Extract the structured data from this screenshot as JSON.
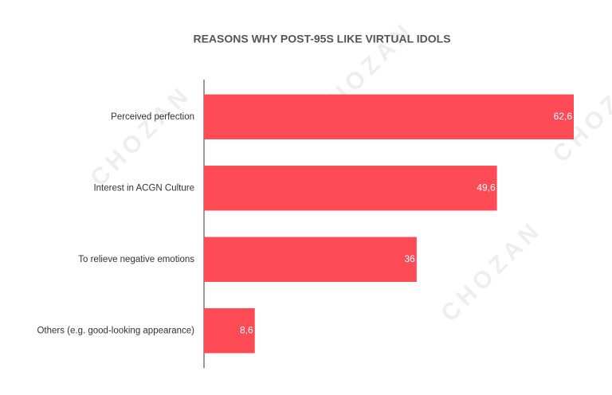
{
  "chart_data": {
    "type": "bar",
    "orientation": "horizontal",
    "title": "REASONS WHY POST-95S LIKE VIRTUAL IDOLS",
    "watermark": "CHOZAN",
    "categories": [
      "Perceived perfection",
      "Interest in ACGN Culture",
      "To relieve negative emotions",
      "Others (e.g. good-looking appearance)"
    ],
    "values": [
      62.6,
      49.6,
      36,
      8.6
    ],
    "value_labels": [
      "62,6",
      "49,6",
      "36",
      "8,6"
    ],
    "color": "#ff4b55"
  }
}
